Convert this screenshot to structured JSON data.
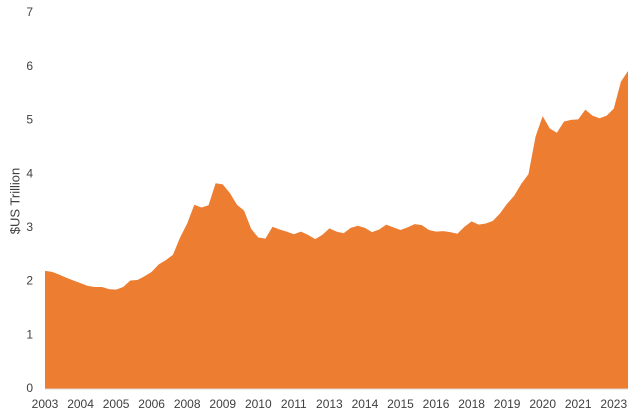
{
  "chart_data": {
    "type": "area",
    "y_label": "$US Trillion",
    "categories": [
      "2003",
      null,
      null,
      null,
      null,
      "2004",
      null,
      null,
      null,
      null,
      "2005",
      null,
      null,
      null,
      null,
      "2006",
      null,
      null,
      null,
      null,
      "2008",
      null,
      null,
      null,
      null,
      "2009",
      null,
      null,
      null,
      null,
      "2010",
      null,
      null,
      null,
      null,
      "2011",
      null,
      null,
      null,
      null,
      "2013",
      null,
      null,
      null,
      null,
      "2014",
      null,
      null,
      null,
      null,
      "2015",
      null,
      null,
      null,
      null,
      "2016",
      null,
      null,
      null,
      null,
      "2018",
      null,
      null,
      null,
      null,
      "2019",
      null,
      null,
      null,
      null,
      "2020",
      null,
      null,
      null,
      null,
      "2021",
      null,
      null,
      null,
      null,
      "2023",
      null,
      null
    ],
    "values": [
      2.2,
      2.18,
      2.13,
      2.07,
      2.02,
      1.97,
      1.92,
      1.9,
      1.9,
      1.86,
      1.85,
      1.9,
      2.02,
      2.03,
      2.1,
      2.18,
      2.32,
      2.4,
      2.5,
      2.82,
      3.08,
      3.43,
      3.38,
      3.42,
      3.83,
      3.81,
      3.65,
      3.43,
      3.32,
      2.98,
      2.82,
      2.8,
      3.02,
      2.97,
      2.93,
      2.88,
      2.93,
      2.87,
      2.79,
      2.87,
      2.99,
      2.93,
      2.9,
      3.0,
      3.04,
      3.0,
      2.92,
      2.97,
      3.06,
      3.01,
      2.96,
      3.01,
      3.07,
      3.05,
      2.96,
      2.93,
      2.94,
      2.92,
      2.89,
      3.02,
      3.12,
      3.06,
      3.08,
      3.13,
      3.27,
      3.45,
      3.6,
      3.82,
      4.0,
      4.7,
      5.08,
      4.85,
      4.77,
      4.98,
      5.01,
      5.02,
      5.2,
      5.09,
      5.04,
      5.09,
      5.22,
      5.72,
      5.92
    ],
    "color": "#ed7d31",
    "ylim": [
      0,
      7
    ],
    "yticks": [
      0,
      1,
      2,
      3,
      4,
      5,
      6,
      7
    ],
    "grid": false
  }
}
